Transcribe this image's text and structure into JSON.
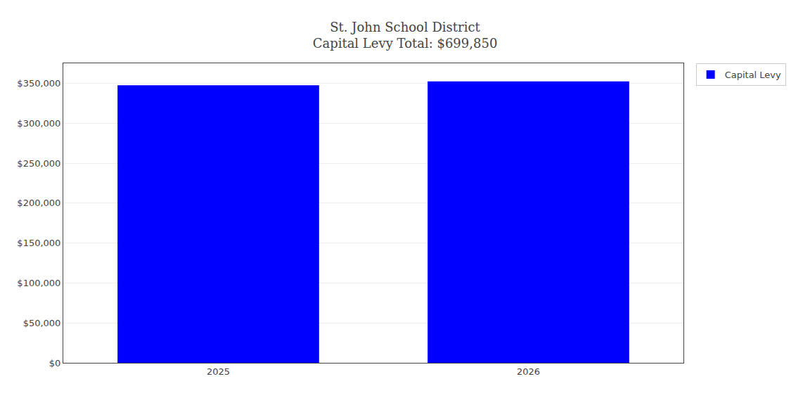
{
  "chart_data": {
    "type": "bar",
    "title": "St. John School District",
    "subtitle": "Capital Levy Total: $699,850",
    "categories": [
      "2025",
      "2026"
    ],
    "series": [
      {
        "name": "Capital Levy",
        "color": "#0000FF",
        "values": [
          347500,
          352350
        ]
      }
    ],
    "ylim": [
      0,
      375000
    ],
    "yticks": [
      {
        "value": 0,
        "label": "$0"
      },
      {
        "value": 50000,
        "label": "$50,000"
      },
      {
        "value": 100000,
        "label": "$100,000"
      },
      {
        "value": 150000,
        "label": "$150,000"
      },
      {
        "value": 200000,
        "label": "$200,000"
      },
      {
        "value": 250000,
        "label": "$250,000"
      },
      {
        "value": 300000,
        "label": "$300,000"
      },
      {
        "value": 350000,
        "label": "$350,000"
      }
    ],
    "grid": true,
    "legend": "right"
  }
}
